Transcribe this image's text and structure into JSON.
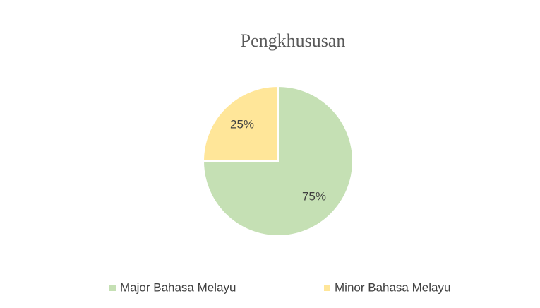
{
  "chart_data": {
    "type": "pie",
    "title": "Pengkhususan",
    "categories": [
      "Major Bahasa Melayu",
      "Minor Bahasa Melayu"
    ],
    "values": [
      75,
      25
    ],
    "value_labels": [
      "75%",
      "25%"
    ],
    "colors": [
      "#c5e0b4",
      "#ffe699"
    ],
    "legend": "bottom"
  }
}
